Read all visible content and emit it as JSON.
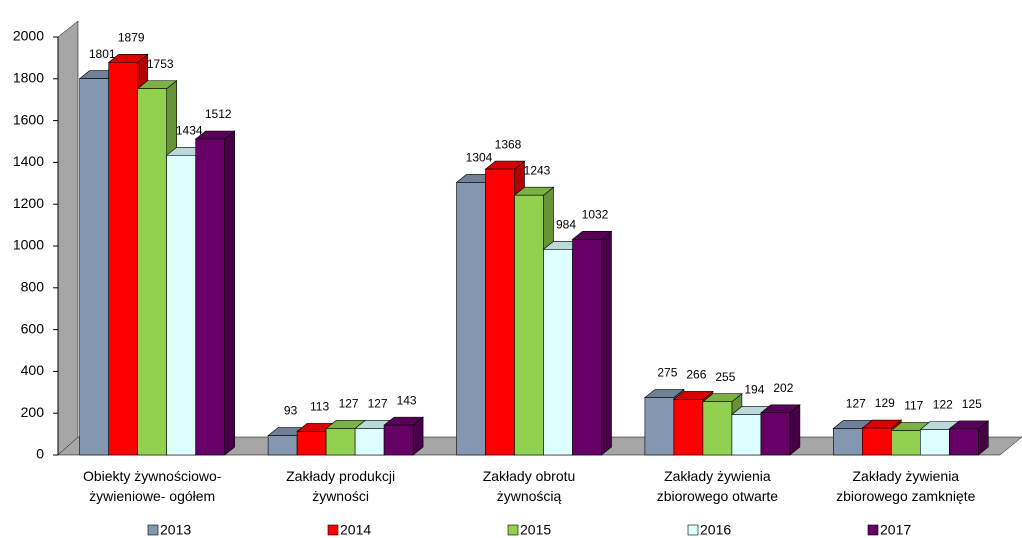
{
  "chart_data": {
    "type": "bar3d",
    "categories": [
      [
        "Obiekty żywnościowo-",
        "żywieniowe- ogółem"
      ],
      [
        "Zakłady produkcji",
        "żywności"
      ],
      [
        "Zakłady obrotu",
        "żywnością"
      ],
      [
        "Zakłady żywienia",
        "zbiorowego otwarte"
      ],
      [
        "Zakłady żywienia",
        "zbiorowego zamknięte"
      ]
    ],
    "series": [
      {
        "name": "2013",
        "color": "#8497b0",
        "values": [
          1801,
          93,
          1304,
          275,
          127
        ]
      },
      {
        "name": "2014",
        "color": "#ff0000",
        "values": [
          1879,
          113,
          1368,
          266,
          129
        ]
      },
      {
        "name": "2015",
        "color": "#92d050",
        "values": [
          1753,
          127,
          1243,
          255,
          117
        ]
      },
      {
        "name": "2016",
        "color": "#ddffff",
        "values": [
          1434,
          127,
          984,
          194,
          122
        ]
      },
      {
        "name": "2017",
        "color": "#660066",
        "values": [
          1512,
          143,
          1032,
          202,
          125
        ]
      }
    ],
    "ylim": [
      0,
      2000
    ],
    "yticks": [
      0,
      200,
      400,
      600,
      800,
      1000,
      1200,
      1400,
      1600,
      1800,
      2000
    ]
  }
}
